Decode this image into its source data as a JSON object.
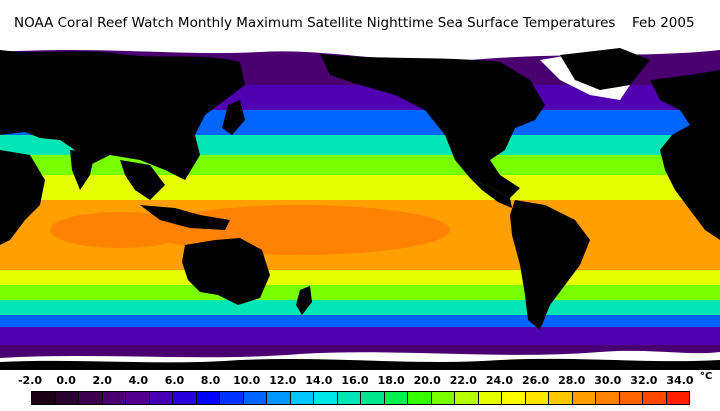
{
  "title": {
    "main": "NOAA Coral Reef Watch Monthly Maximum Satellite Nighttime Sea Surface Temperatures",
    "date": "Feb 2005"
  },
  "colorbar": {
    "unit": "°C",
    "ticks": [
      "-2.0",
      "0.0",
      "2.0",
      "4.0",
      "6.0",
      "8.0",
      "10.0",
      "12.0",
      "14.0",
      "16.0",
      "18.0",
      "20.0",
      "22.0",
      "24.0",
      "26.0",
      "28.0",
      "30.0",
      "32.0",
      "34.0"
    ],
    "colors": [
      "#1a0010",
      "#2a0030",
      "#3a0050",
      "#4a0070",
      "#50008c",
      "#4600b4",
      "#2800dc",
      "#0000ff",
      "#0032ff",
      "#0064ff",
      "#0096ff",
      "#00c8ff",
      "#00e6e6",
      "#00e6b4",
      "#00e68c",
      "#00f050",
      "#32ff00",
      "#78ff00",
      "#b4ff00",
      "#e6ff00",
      "#ffff00",
      "#ffe600",
      "#ffc800",
      "#ffa000",
      "#ff8200",
      "#ff6400",
      "#ff4600",
      "#ff2000"
    ]
  },
  "map": {
    "colors": {
      "land": "#000000",
      "ice": "#ffffff",
      "ocean_polar": "#4a0070",
      "ocean_cold": "#5000b0",
      "ocean_cool": "#0064ff",
      "ocean_mild": "#00e6b4",
      "ocean_temperate": "#78ff00",
      "ocean_subtropical": "#e6ff00",
      "ocean_tropical": "#ffa000",
      "ocean_warm_pool": "#ff8200"
    }
  }
}
